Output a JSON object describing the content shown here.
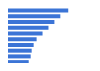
{
  "chart_data": {
    "type": "bar",
    "orientation": "horizontal",
    "categories": [
      null,
      null,
      null,
      null,
      null,
      null,
      null,
      null,
      null,
      null,
      null
    ],
    "values": [
      83,
      65,
      57,
      51,
      45,
      39,
      33,
      30,
      28,
      27,
      25
    ],
    "color": "#3b74d6",
    "xlim": [
      0,
      85
    ],
    "tick_labels": false,
    "grid": false
  }
}
